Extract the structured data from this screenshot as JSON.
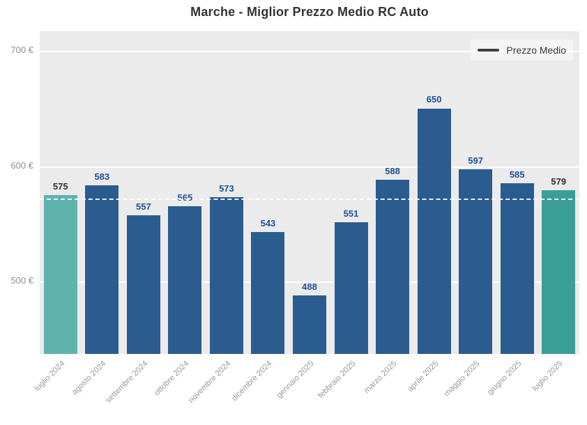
{
  "title": "Marche - Miglior Prezzo Medio RC Auto",
  "legend": {
    "label": "Prezzo Medio"
  },
  "chart_data": {
    "type": "bar",
    "title": "Marche - Miglior Prezzo Medio RC Auto",
    "categories": [
      "luglio 2024",
      "agosto 2024",
      "settembre 2024",
      "ottobre 2024",
      "novembre 2024",
      "dicembre 2024",
      "gennaio 2025",
      "febbraio 2025",
      "marzo 2025",
      "aprile 2025",
      "maggio 2025",
      "giugno 2025",
      "luglio 2025"
    ],
    "values": [
      575,
      583,
      557,
      565,
      573,
      543,
      488,
      551,
      588,
      650,
      597,
      585,
      579
    ],
    "series_name": "Prezzo Medio",
    "average_line_value": 572,
    "currency_suffix": " €",
    "yticks": [
      700,
      600,
      500
    ],
    "ytick_labels": [
      "700 €",
      "600 €",
      "500 €"
    ],
    "ylim": [
      437,
      715
    ],
    "grid": true,
    "legend_position": "top-right",
    "colors": {
      "bar_default": "#2b5c90",
      "bar_highlight_first": "#5fb3ad",
      "bar_highlight_last": "#3b9f98",
      "label_default": "#1e5298",
      "label_highlight": "#2f2f2f",
      "plot_background": "#ebebeb",
      "gridline": "#ffffff",
      "average_line": "#ffffff",
      "axis_text": "#8e8e8e",
      "xaxis_text": "#999999",
      "title_text": "#333333",
      "legend_line": "#3f3f3f"
    },
    "highlight_indices": [
      0,
      12
    ]
  }
}
